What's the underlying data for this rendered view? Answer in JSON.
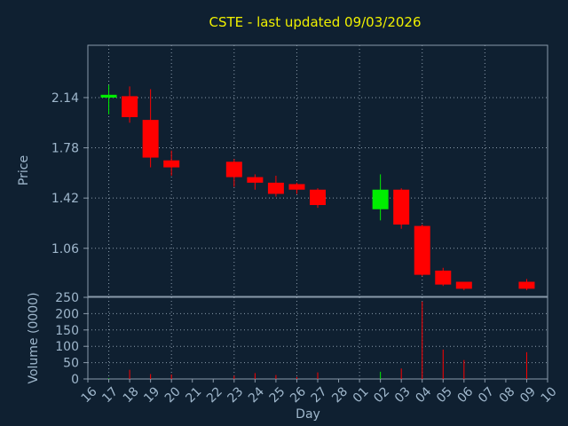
{
  "chart_data": {
    "type": "candlestick",
    "title": "CSTE - last updated 09/03/2026",
    "ylabel": "Price",
    "xlabel": "Day",
    "volume_label": "Volume (0000)",
    "x_tick_labels": [
      "16",
      "17",
      "18",
      "19",
      "20",
      "21",
      "22",
      "23",
      "24",
      "25",
      "26",
      "27",
      "28",
      "01",
      "02",
      "03",
      "04",
      "05",
      "06",
      "07",
      "08",
      "09",
      "10"
    ],
    "price_ticks": [
      "2.14",
      "1.78",
      "1.42",
      "1.06"
    ],
    "price_tick_values": [
      2.14,
      1.78,
      1.42,
      1.06
    ],
    "volume_ticks": [
      "250",
      "200",
      "150",
      "100",
      "50",
      "0"
    ],
    "volume_tick_values": [
      250,
      200,
      150,
      100,
      50,
      0
    ],
    "price_range": [
      0.715,
      2.515
    ],
    "volume_range": [
      0,
      250
    ],
    "grid": true,
    "up_color": "#00ee00",
    "down_color": "#ff0000",
    "candles": [
      {
        "day": "17",
        "open": 2.14,
        "high": 2.23,
        "low": 2.02,
        "close": 2.16,
        "volume": 2
      },
      {
        "day": "18",
        "open": 2.15,
        "high": 2.22,
        "low": 1.96,
        "close": 2.0,
        "volume": 28
      },
      {
        "day": "19",
        "open": 1.98,
        "high": 2.2,
        "low": 1.64,
        "close": 1.71,
        "volume": 15
      },
      {
        "day": "20",
        "open": 1.69,
        "high": 1.76,
        "low": 1.58,
        "close": 1.64,
        "volume": 14
      },
      {
        "day": "23",
        "open": 1.68,
        "high": 1.7,
        "low": 1.5,
        "close": 1.57,
        "volume": 10
      },
      {
        "day": "24",
        "open": 1.57,
        "high": 1.59,
        "low": 1.48,
        "close": 1.53,
        "volume": 18
      },
      {
        "day": "25",
        "open": 1.53,
        "high": 1.58,
        "low": 1.43,
        "close": 1.45,
        "volume": 12
      },
      {
        "day": "26",
        "open": 1.52,
        "high": 1.53,
        "low": 1.45,
        "close": 1.48,
        "volume": 6
      },
      {
        "day": "27",
        "open": 1.48,
        "high": 1.49,
        "low": 1.35,
        "close": 1.37,
        "volume": 20
      },
      {
        "day": "02",
        "open": 1.34,
        "high": 1.59,
        "low": 1.26,
        "close": 1.48,
        "volume": 22
      },
      {
        "day": "03",
        "open": 1.48,
        "high": 1.49,
        "low": 1.2,
        "close": 1.23,
        "volume": 32
      },
      {
        "day": "04",
        "open": 1.22,
        "high": 1.23,
        "low": 0.86,
        "close": 0.87,
        "volume": 237
      },
      {
        "day": "05",
        "open": 0.9,
        "high": 0.92,
        "low": 0.79,
        "close": 0.8,
        "volume": 90
      },
      {
        "day": "06",
        "open": 0.82,
        "high": 0.82,
        "low": 0.76,
        "close": 0.77,
        "volume": 58
      },
      {
        "day": "09",
        "open": 0.82,
        "high": 0.84,
        "low": 0.76,
        "close": 0.77,
        "volume": 82
      }
    ]
  }
}
